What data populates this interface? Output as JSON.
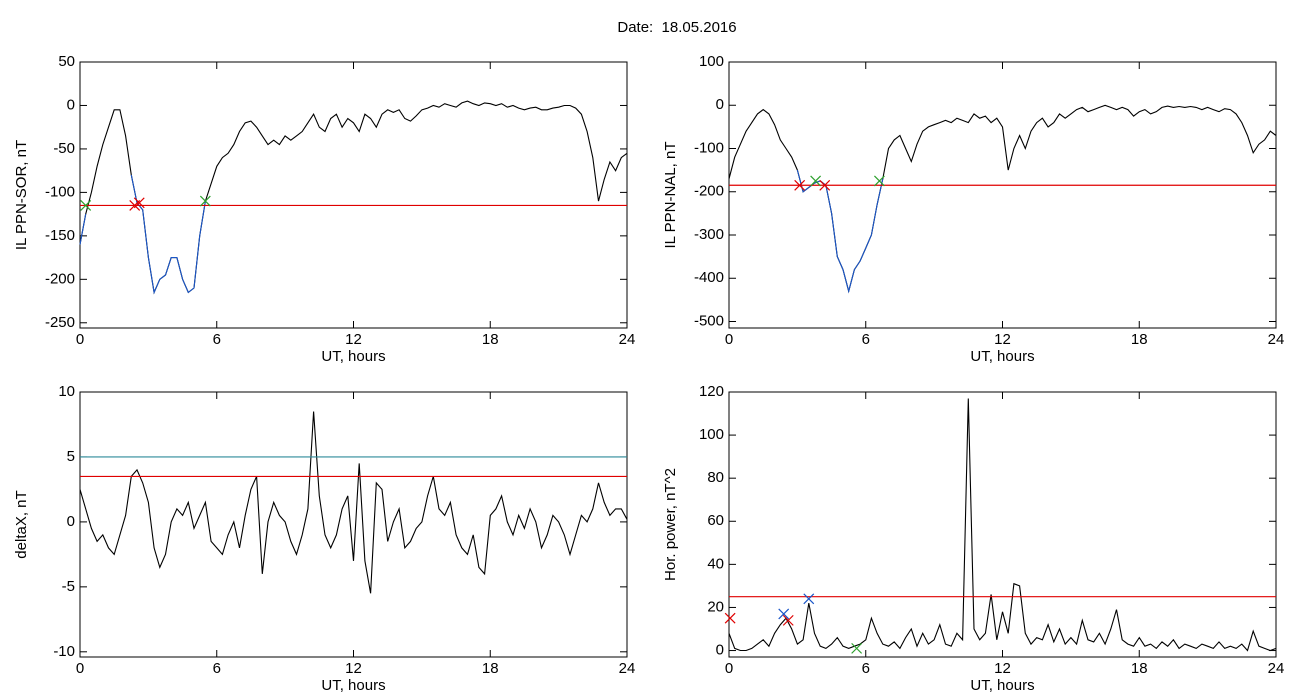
{
  "title": "Date:  18.05.2016",
  "chart_data": [
    {
      "type": "line",
      "xlabel": "UT, hours",
      "ylabel": "IL PPN-SOR, nT",
      "xlim": [
        0,
        24
      ],
      "xticks": [
        0,
        6,
        12,
        18,
        24
      ],
      "ylim": [
        -256,
        50
      ],
      "yticks": [
        50,
        0,
        -50,
        -100,
        -150,
        -200,
        -250
      ],
      "x": [
        0,
        0.25,
        0.5,
        0.75,
        1,
        1.25,
        1.5,
        1.75,
        2,
        2.25,
        2.5,
        2.75,
        3,
        3.25,
        3.5,
        3.75,
        4,
        4.25,
        4.5,
        4.75,
        5,
        5.25,
        5.5,
        5.75,
        6,
        6.25,
        6.5,
        6.75,
        7,
        7.25,
        7.5,
        7.75,
        8,
        8.25,
        8.5,
        8.75,
        9,
        9.25,
        9.5,
        9.75,
        10,
        10.25,
        10.5,
        10.75,
        11,
        11.25,
        11.5,
        11.75,
        12,
        12.25,
        12.5,
        12.75,
        13,
        13.25,
        13.5,
        13.75,
        14,
        14.25,
        14.5,
        14.75,
        15,
        15.25,
        15.5,
        15.75,
        16,
        16.25,
        16.5,
        16.75,
        17,
        17.25,
        17.5,
        17.75,
        18,
        18.25,
        18.5,
        18.75,
        19,
        19.25,
        19.5,
        19.75,
        20,
        20.25,
        20.5,
        20.75,
        21,
        21.25,
        21.5,
        21.75,
        22,
        22.25,
        22.5,
        22.75,
        23,
        23.25,
        23.5,
        23.75,
        24
      ],
      "series": [
        {
          "color": "#000000",
          "values": [
            -160,
            -125,
            -100,
            -70,
            -45,
            -25,
            -5,
            -5,
            -35,
            -80,
            -112,
            -120,
            -175,
            -215,
            -200,
            -195,
            -175,
            -175,
            -200,
            -215,
            -210,
            -150,
            -110,
            -90,
            -70,
            -60,
            -55,
            -45,
            -30,
            -20,
            -18,
            -25,
            -35,
            -45,
            -40,
            -45,
            -35,
            -40,
            -35,
            -30,
            -20,
            -10,
            -25,
            -30,
            -15,
            -10,
            -25,
            -15,
            -20,
            -30,
            -10,
            -15,
            -25,
            -10,
            -5,
            -8,
            -5,
            -15,
            -18,
            -12,
            -5,
            -3,
            0,
            -2,
            2,
            0,
            -2,
            3,
            5,
            2,
            0,
            3,
            2,
            0,
            2,
            -2,
            0,
            -3,
            -5,
            -3,
            -2,
            -5,
            -5,
            -3,
            -2,
            0,
            0,
            -3,
            -10,
            -30,
            -60,
            -110,
            -85,
            -65,
            -75,
            -60,
            -55
          ]
        },
        {
          "color": "#1a56c8",
          "values": [
            -160,
            -125,
            null,
            null,
            null,
            null,
            null,
            null,
            null,
            -80,
            -112,
            -120,
            -175,
            -215,
            -200,
            -195,
            -175,
            -175,
            -200,
            -215,
            -210,
            -150,
            -110,
            null,
            null,
            null,
            null,
            null,
            null,
            null,
            null,
            null,
            null,
            null,
            null,
            null,
            null,
            null,
            null,
            null,
            null,
            null,
            null,
            null,
            null,
            null,
            null,
            null,
            null,
            null,
            null,
            null,
            null,
            null,
            null,
            null,
            null,
            null,
            null,
            null,
            null,
            null,
            null,
            null,
            null,
            null,
            null,
            null,
            null,
            null,
            null,
            null,
            null,
            null,
            null,
            null,
            null,
            null,
            null,
            null,
            null,
            null,
            null,
            null,
            null,
            null,
            null,
            null,
            null,
            null,
            null,
            null,
            null,
            null,
            null,
            null,
            null
          ]
        }
      ],
      "hlines": [
        {
          "value": -115,
          "color": "#e00000"
        }
      ],
      "markers": [
        {
          "x": 0.25,
          "y": -115,
          "color": "#2ca02c"
        },
        {
          "x": 2.4,
          "y": -115,
          "color": "#e00000"
        },
        {
          "x": 2.6,
          "y": -112,
          "color": "#e00000"
        },
        {
          "x": 5.5,
          "y": -110,
          "color": "#2ca02c"
        }
      ]
    },
    {
      "type": "line",
      "xlabel": "UT, hours",
      "ylabel": "IL PPN-NAL, nT",
      "xlim": [
        0,
        24
      ],
      "xticks": [
        0,
        6,
        12,
        18,
        24
      ],
      "ylim": [
        -515,
        100
      ],
      "yticks": [
        100,
        0,
        -100,
        -200,
        -300,
        -400,
        -500
      ],
      "x": [
        0,
        0.25,
        0.5,
        0.75,
        1,
        1.25,
        1.5,
        1.75,
        2,
        2.25,
        2.5,
        2.75,
        3,
        3.25,
        3.5,
        3.75,
        4,
        4.25,
        4.5,
        4.75,
        5,
        5.25,
        5.5,
        5.75,
        6,
        6.25,
        6.5,
        6.75,
        7,
        7.25,
        7.5,
        7.75,
        8,
        8.25,
        8.5,
        8.75,
        9,
        9.25,
        9.5,
        9.75,
        10,
        10.25,
        10.5,
        10.75,
        11,
        11.25,
        11.5,
        11.75,
        12,
        12.25,
        12.5,
        12.75,
        13,
        13.25,
        13.5,
        13.75,
        14,
        14.25,
        14.5,
        14.75,
        15,
        15.25,
        15.5,
        15.75,
        16,
        16.25,
        16.5,
        16.75,
        17,
        17.25,
        17.5,
        17.75,
        18,
        18.25,
        18.5,
        18.75,
        19,
        19.25,
        19.5,
        19.75,
        20,
        20.25,
        20.5,
        20.75,
        21,
        21.25,
        21.5,
        21.75,
        22,
        22.25,
        22.5,
        22.75,
        23,
        23.25,
        23.5,
        23.75,
        24
      ],
      "series": [
        {
          "color": "#000000",
          "values": [
            -170,
            -120,
            -90,
            -60,
            -40,
            -20,
            -10,
            -20,
            -45,
            -80,
            -100,
            -120,
            -150,
            -200,
            -190,
            -180,
            -175,
            -185,
            -250,
            -350,
            -380,
            -430,
            -380,
            -360,
            -330,
            -300,
            -230,
            -170,
            -100,
            -80,
            -70,
            -100,
            -130,
            -90,
            -60,
            -50,
            -45,
            -40,
            -35,
            -40,
            -30,
            -35,
            -40,
            -20,
            -30,
            -25,
            -40,
            -30,
            -50,
            -150,
            -100,
            -70,
            -100,
            -60,
            -40,
            -30,
            -50,
            -40,
            -20,
            -30,
            -20,
            -10,
            -5,
            -15,
            -10,
            -5,
            0,
            -5,
            -10,
            -5,
            -10,
            -25,
            -15,
            -10,
            -20,
            -15,
            -5,
            -2,
            -5,
            -3,
            -5,
            -3,
            -5,
            -10,
            -5,
            -10,
            -15,
            -8,
            -10,
            -20,
            -40,
            -70,
            -110,
            -90,
            -80,
            -60,
            -70
          ]
        },
        {
          "color": "#1a56c8",
          "values": [
            null,
            null,
            null,
            null,
            null,
            null,
            null,
            null,
            null,
            null,
            null,
            null,
            -150,
            -200,
            -190,
            -180,
            -175,
            -185,
            -250,
            -350,
            -380,
            -430,
            -380,
            -360,
            -330,
            -300,
            -230,
            -170,
            null,
            null,
            null,
            null,
            null,
            null,
            null,
            null,
            null,
            null,
            null,
            null,
            null,
            null,
            null,
            null,
            null,
            null,
            null,
            null,
            null,
            null,
            null,
            null,
            null,
            null,
            null,
            null,
            null,
            null,
            null,
            null,
            null,
            null,
            null,
            null,
            null,
            null,
            null,
            null,
            null,
            null,
            null,
            null,
            null,
            null,
            null,
            null,
            null,
            null,
            null,
            null,
            null,
            null,
            null,
            null,
            null,
            null,
            null,
            null,
            null,
            null,
            null,
            null,
            null,
            null,
            null,
            null,
            null
          ]
        }
      ],
      "hlines": [
        {
          "value": -185,
          "color": "#e00000"
        }
      ],
      "markers": [
        {
          "x": 3.1,
          "y": -185,
          "color": "#e00000"
        },
        {
          "x": 3.8,
          "y": -175,
          "color": "#2ca02c"
        },
        {
          "x": 4.2,
          "y": -185,
          "color": "#e00000"
        },
        {
          "x": 6.6,
          "y": -175,
          "color": "#2ca02c"
        }
      ]
    },
    {
      "type": "line",
      "xlabel": "UT, hours",
      "ylabel": "deltaX, nT",
      "xlim": [
        0,
        24
      ],
      "xticks": [
        0,
        6,
        12,
        18,
        24
      ],
      "ylim": [
        -10.4,
        10
      ],
      "yticks": [
        10,
        5,
        0,
        -5,
        -10
      ],
      "x": [
        0,
        0.25,
        0.5,
        0.75,
        1,
        1.25,
        1.5,
        1.75,
        2,
        2.25,
        2.5,
        2.75,
        3,
        3.25,
        3.5,
        3.75,
        4,
        4.25,
        4.5,
        4.75,
        5,
        5.25,
        5.5,
        5.75,
        6,
        6.25,
        6.5,
        6.75,
        7,
        7.25,
        7.5,
        7.75,
        8,
        8.25,
        8.5,
        8.75,
        9,
        9.25,
        9.5,
        9.75,
        10,
        10.25,
        10.5,
        10.75,
        11,
        11.25,
        11.5,
        11.75,
        12,
        12.25,
        12.5,
        12.75,
        13,
        13.25,
        13.5,
        13.75,
        14,
        14.25,
        14.5,
        14.75,
        15,
        15.25,
        15.5,
        15.75,
        16,
        16.25,
        16.5,
        16.75,
        17,
        17.25,
        17.5,
        17.75,
        18,
        18.25,
        18.5,
        18.75,
        19,
        19.25,
        19.5,
        19.75,
        20,
        20.25,
        20.5,
        20.75,
        21,
        21.25,
        21.5,
        21.75,
        22,
        22.25,
        22.5,
        22.75,
        23,
        23.25,
        23.5,
        23.75,
        24
      ],
      "series": [
        {
          "color": "#000000",
          "values": [
            2.5,
            1,
            -0.5,
            -1.5,
            -1,
            -2,
            -2.5,
            -1,
            0.5,
            3.5,
            4,
            3,
            1.5,
            -2,
            -3.5,
            -2.5,
            0,
            1,
            0.5,
            1.5,
            -0.5,
            0.5,
            1.5,
            -1.5,
            -2,
            -2.5,
            -1,
            0,
            -2,
            0.5,
            2.5,
            3.5,
            -4,
            0,
            1.5,
            0.5,
            0,
            -1.5,
            -2.5,
            -1,
            1,
            8.5,
            2,
            -1,
            -2,
            -1,
            1,
            2,
            -3,
            4.5,
            -3,
            -5.5,
            3,
            2.5,
            -1.5,
            0,
            1,
            -2,
            -1.5,
            -0.5,
            0,
            2,
            3.5,
            1,
            0.5,
            1.5,
            -1,
            -2,
            -2.5,
            -1,
            -3.5,
            -4,
            0.5,
            1,
            2,
            0,
            -1,
            0.5,
            -0.5,
            1,
            0,
            -2,
            -1,
            0.5,
            0,
            -1,
            -2.5,
            -1,
            0.5,
            0,
            1,
            3,
            1.5,
            0.5,
            1,
            1,
            0.2
          ]
        }
      ],
      "hlines": [
        {
          "value": 5,
          "color": "#2e8b9a"
        },
        {
          "value": 3.5,
          "color": "#e00000"
        }
      ],
      "markers": []
    },
    {
      "type": "line",
      "xlabel": "UT, hours",
      "ylabel": "Hor. power, nT^2",
      "xlim": [
        0,
        24
      ],
      "xticks": [
        0,
        6,
        12,
        18,
        24
      ],
      "ylim": [
        -3,
        120
      ],
      "yticks": [
        120,
        100,
        80,
        60,
        40,
        20,
        0
      ],
      "x": [
        0,
        0.25,
        0.5,
        0.75,
        1,
        1.25,
        1.5,
        1.75,
        2,
        2.25,
        2.5,
        2.75,
        3,
        3.25,
        3.5,
        3.75,
        4,
        4.25,
        4.5,
        4.75,
        5,
        5.25,
        5.5,
        5.75,
        6,
        6.25,
        6.5,
        6.75,
        7,
        7.25,
        7.5,
        7.75,
        8,
        8.25,
        8.5,
        8.75,
        9,
        9.25,
        9.5,
        9.75,
        10,
        10.25,
        10.5,
        10.75,
        11,
        11.25,
        11.5,
        11.75,
        12,
        12.25,
        12.5,
        12.75,
        13,
        13.25,
        13.5,
        13.75,
        14,
        14.25,
        14.5,
        14.75,
        15,
        15.25,
        15.5,
        15.75,
        16,
        16.25,
        16.5,
        16.75,
        17,
        17.25,
        17.5,
        17.75,
        18,
        18.25,
        18.5,
        18.75,
        19,
        19.25,
        19.5,
        19.75,
        20,
        20.25,
        20.5,
        20.75,
        21,
        21.25,
        21.5,
        21.75,
        22,
        22.25,
        22.5,
        22.75,
        23,
        23.25,
        23.5,
        23.75,
        24
      ],
      "series": [
        {
          "color": "#000000",
          "values": [
            8,
            1,
            0,
            0,
            1,
            3,
            5,
            2,
            8,
            12,
            15,
            10,
            3,
            5,
            22,
            8,
            2,
            1,
            3,
            6,
            2,
            1,
            2,
            3,
            5,
            15,
            8,
            3,
            2,
            4,
            1,
            6,
            10,
            2,
            8,
            3,
            5,
            12,
            3,
            2,
            8,
            5,
            117,
            10,
            5,
            8,
            26,
            5,
            18,
            8,
            31,
            30,
            8,
            3,
            6,
            5,
            12,
            4,
            10,
            3,
            6,
            3,
            14,
            5,
            4,
            8,
            3,
            10,
            19,
            5,
            3,
            2,
            6,
            2,
            3,
            1,
            4,
            2,
            5,
            1,
            3,
            2,
            1,
            3,
            2,
            1,
            4,
            1,
            2,
            1,
            3,
            0,
            9,
            2,
            1,
            0,
            1
          ]
        }
      ],
      "hlines": [
        {
          "value": 25,
          "color": "#e00000"
        }
      ],
      "markers": [
        {
          "x": 0.05,
          "y": 15,
          "color": "#e00000"
        },
        {
          "x": 2.4,
          "y": 17,
          "color": "#1a56c8"
        },
        {
          "x": 2.6,
          "y": 14,
          "color": "#e00000"
        },
        {
          "x": 3.5,
          "y": 24,
          "color": "#1a56c8"
        },
        {
          "x": 5.6,
          "y": 1,
          "color": "#2ca02c"
        }
      ]
    }
  ]
}
